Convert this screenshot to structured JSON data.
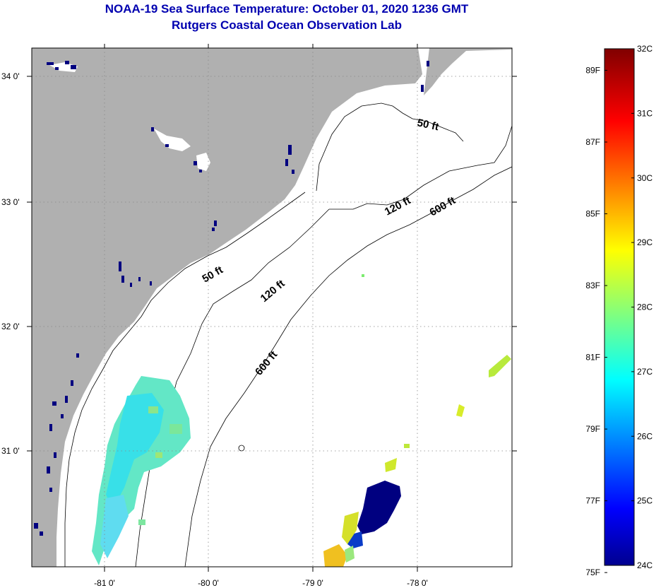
{
  "header": {
    "title": "NOAA-19 Sea Surface Temperature:  October 01, 2020 1236 GMT",
    "subtitle": "Rutgers Coastal Ocean Observation Lab"
  },
  "map": {
    "lat_labels": [
      "34 0'",
      "33 0'",
      "32 0'",
      "31 0'"
    ],
    "lon_labels": [
      "-81 0'",
      "-80 0'",
      "-79 0'",
      "-78 0'"
    ],
    "contour_labels": {
      "c50_north": "50 ft",
      "c50_mid": "50 ft",
      "c120_north": "120 ft",
      "c120_mid": "120 ft",
      "c600_north": "600 ft",
      "c600_mid": "600 ft"
    },
    "colors": {
      "land": "#b0b0b0",
      "ocean": "#ffffff",
      "title": "#0000b0"
    }
  },
  "colorbar": {
    "min_c": 24,
    "max_c": 32,
    "celsius": [
      "32C",
      "31C",
      "30C",
      "29C",
      "28C",
      "27C",
      "26C",
      "25C",
      "24C"
    ],
    "fahrenheit": [
      "89F",
      "87F",
      "85F",
      "83F",
      "81F",
      "79F",
      "77F",
      "75F"
    ]
  }
}
